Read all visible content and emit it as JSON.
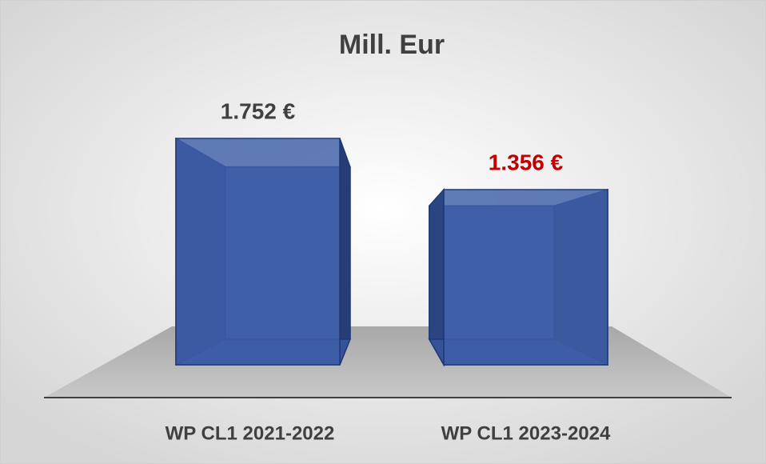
{
  "chart_data": {
    "type": "bar3d",
    "title": "Mill. Eur",
    "categories": [
      "WP CL1 2021-2022",
      "WP CL1 2023-2024"
    ],
    "values": [
      1752,
      1356
    ],
    "value_labels": [
      "1.752 €",
      "1.356 €"
    ],
    "label_colors": [
      "#404040",
      "#c00000"
    ],
    "color": "#3f5fa8"
  }
}
